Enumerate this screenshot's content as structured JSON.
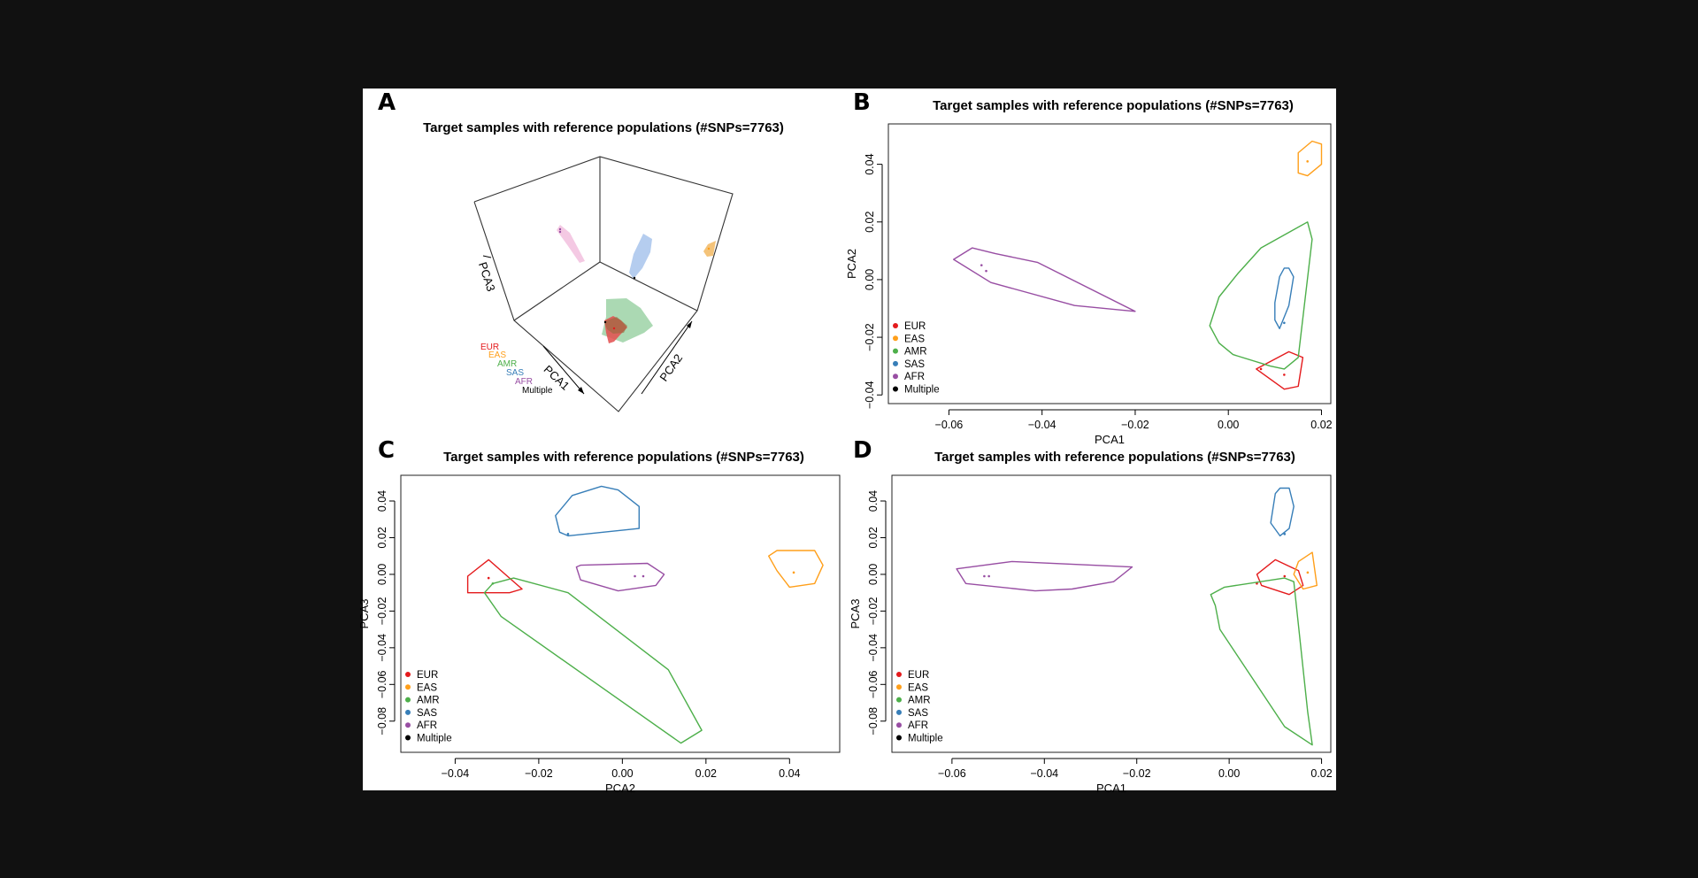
{
  "figure": {
    "panels": [
      "A",
      "B",
      "C",
      "D"
    ]
  },
  "legend": [
    {
      "label": "EUR",
      "color": "#e41a1c"
    },
    {
      "label": "EAS",
      "color": "#ff9f1a"
    },
    {
      "label": "AMR",
      "color": "#4daf4a"
    },
    {
      "label": "SAS",
      "color": "#377eb8"
    },
    {
      "label": "AFR",
      "color": "#984ea3"
    },
    {
      "label": "Multiple",
      "color": "#000000"
    }
  ],
  "chart_data": [
    {
      "panel": "A",
      "type": "scatter",
      "projection": "3d",
      "title": "Target samples with reference populations (#SNPs=7763)",
      "xlabel": "PCA1",
      "ylabel": "PCA2",
      "zlabel": "PCA3",
      "grid": false,
      "legend_position": "bottom-left",
      "hull_style": "filled",
      "series": [
        {
          "name": "EUR",
          "color": "#e41a1c"
        },
        {
          "name": "EAS",
          "color": "#ff9f1a"
        },
        {
          "name": "AMR",
          "color": "#4daf4a"
        },
        {
          "name": "SAS",
          "color": "#377eb8"
        },
        {
          "name": "AFR",
          "color": "#984ea3"
        },
        {
          "name": "Multiple",
          "color": "#000000"
        }
      ]
    },
    {
      "panel": "B",
      "type": "scatter",
      "title": "Target samples with reference populations (#SNPs=7763)",
      "xlabel": "PCA1",
      "ylabel": "PCA2",
      "xlim": [
        -0.073,
        0.022
      ],
      "ylim": [
        -0.043,
        0.054
      ],
      "xticks": [
        -0.06,
        -0.04,
        -0.02,
        0.0,
        0.02
      ],
      "xtick_labels": [
        "−0.06",
        "−0.04",
        "−0.02",
        "0.00",
        "0.02"
      ],
      "yticks": [
        -0.04,
        -0.02,
        0.0,
        0.02,
        0.04
      ],
      "ytick_labels": [
        "−0.04",
        "−0.02",
        "0.00",
        "0.02",
        "0.04"
      ],
      "grid": false,
      "legend_position": "bottom-left",
      "series": [
        {
          "name": "EUR",
          "color": "#e41a1c",
          "hull": [
            [
              0.006,
              -0.031
            ],
            [
              0.013,
              -0.025
            ],
            [
              0.016,
              -0.027
            ],
            [
              0.015,
              -0.037
            ],
            [
              0.012,
              -0.038
            ]
          ],
          "points": [
            [
              0.007,
              -0.031
            ],
            [
              0.012,
              -0.033
            ]
          ]
        },
        {
          "name": "EAS",
          "color": "#ff9f1a",
          "hull": [
            [
              0.015,
              0.044
            ],
            [
              0.018,
              0.048
            ],
            [
              0.02,
              0.047
            ],
            [
              0.02,
              0.04
            ],
            [
              0.017,
              0.036
            ],
            [
              0.015,
              0.037
            ]
          ],
          "points": [
            [
              0.017,
              0.041
            ]
          ]
        },
        {
          "name": "AMR",
          "color": "#4daf4a",
          "hull": [
            [
              0.007,
              0.011
            ],
            [
              0.017,
              0.02
            ],
            [
              0.018,
              0.014
            ],
            [
              0.015,
              -0.027
            ],
            [
              0.012,
              -0.031
            ],
            [
              0.009,
              -0.03
            ],
            [
              0.001,
              -0.026
            ],
            [
              -0.002,
              -0.022
            ],
            [
              -0.004,
              -0.016
            ],
            [
              -0.002,
              -0.006
            ],
            [
              0.002,
              0.002
            ]
          ],
          "points": []
        },
        {
          "name": "SAS",
          "color": "#377eb8",
          "hull": [
            [
              0.011,
              0.001
            ],
            [
              0.012,
              0.004
            ],
            [
              0.013,
              0.004
            ],
            [
              0.014,
              0.001
            ],
            [
              0.013,
              -0.009
            ],
            [
              0.011,
              -0.017
            ],
            [
              0.01,
              -0.014
            ],
            [
              0.01,
              -0.008
            ]
          ],
          "points": [
            [
              0.012,
              -0.015
            ]
          ]
        },
        {
          "name": "AFR",
          "color": "#984ea3",
          "hull": [
            [
              -0.059,
              0.007
            ],
            [
              -0.055,
              0.011
            ],
            [
              -0.05,
              0.009
            ],
            [
              -0.041,
              0.006
            ],
            [
              -0.02,
              -0.011
            ],
            [
              -0.033,
              -0.009
            ],
            [
              -0.051,
              -0.001
            ]
          ],
          "points": [
            [
              -0.053,
              0.005
            ],
            [
              -0.052,
              0.003
            ]
          ]
        }
      ]
    },
    {
      "panel": "C",
      "type": "scatter",
      "title": "Target samples with reference populations (#SNPs=7763)",
      "xlabel": "PCA2",
      "ylabel": "PCA3",
      "xlim": [
        -0.053,
        0.052
      ],
      "ylim": [
        -0.097,
        0.054
      ],
      "xticks": [
        -0.04,
        -0.02,
        0.0,
        0.02,
        0.04
      ],
      "xtick_labels": [
        "−0.04",
        "−0.02",
        "0.00",
        "0.02",
        "0.04"
      ],
      "yticks": [
        -0.08,
        -0.06,
        -0.04,
        -0.02,
        0.0,
        0.02,
        0.04
      ],
      "ytick_labels": [
        "−0.08",
        "−0.06",
        "−0.04",
        "−0.02",
        "0.00",
        "0.02",
        "0.04"
      ],
      "grid": false,
      "legend_position": "bottom-left",
      "series": [
        {
          "name": "EUR",
          "color": "#e41a1c",
          "hull": [
            [
              -0.037,
              -0.001
            ],
            [
              -0.032,
              0.008
            ],
            [
              -0.027,
              -0.002
            ],
            [
              -0.024,
              -0.008
            ],
            [
              -0.027,
              -0.01
            ],
            [
              -0.037,
              -0.01
            ]
          ],
          "points": [
            [
              -0.032,
              -0.002
            ]
          ]
        },
        {
          "name": "EAS",
          "color": "#ff9f1a",
          "hull": [
            [
              0.035,
              0.01
            ],
            [
              0.037,
              0.013
            ],
            [
              0.046,
              0.013
            ],
            [
              0.048,
              0.005
            ],
            [
              0.046,
              -0.005
            ],
            [
              0.04,
              -0.007
            ],
            [
              0.037,
              0.002
            ]
          ],
          "points": [
            [
              0.041,
              0.001
            ]
          ]
        },
        {
          "name": "AMR",
          "color": "#4daf4a",
          "hull": [
            [
              -0.031,
              -0.005
            ],
            [
              -0.026,
              -0.002
            ],
            [
              -0.013,
              -0.01
            ],
            [
              0.011,
              -0.052
            ],
            [
              0.019,
              -0.085
            ],
            [
              0.014,
              -0.092
            ],
            [
              -0.029,
              -0.023
            ],
            [
              -0.033,
              -0.01
            ]
          ],
          "points": [
            [
              -0.031,
              -0.005
            ]
          ]
        },
        {
          "name": "SAS",
          "color": "#377eb8",
          "hull": [
            [
              -0.016,
              0.032
            ],
            [
              -0.012,
              0.043
            ],
            [
              -0.005,
              0.048
            ],
            [
              -0.001,
              0.046
            ],
            [
              0.004,
              0.037
            ],
            [
              0.004,
              0.025
            ],
            [
              -0.013,
              0.021
            ],
            [
              -0.015,
              0.023
            ]
          ],
          "points": [
            [
              -0.013,
              0.022
            ]
          ]
        },
        {
          "name": "AFR",
          "color": "#984ea3",
          "hull": [
            [
              -0.011,
              0.004
            ],
            [
              -0.01,
              0.005
            ],
            [
              0.006,
              0.006
            ],
            [
              0.01,
              0.0
            ],
            [
              0.008,
              -0.006
            ],
            [
              -0.001,
              -0.009
            ],
            [
              -0.01,
              -0.003
            ]
          ],
          "points": [
            [
              0.003,
              -0.001
            ],
            [
              0.005,
              -0.001
            ]
          ]
        }
      ]
    },
    {
      "panel": "D",
      "type": "scatter",
      "title": "Target samples with reference populations (#SNPs=7763)",
      "xlabel": "PCA1",
      "ylabel": "PCA3",
      "xlim": [
        -0.073,
        0.022
      ],
      "ylim": [
        -0.097,
        0.054
      ],
      "xticks": [
        -0.06,
        -0.04,
        -0.02,
        0.0,
        0.02
      ],
      "xtick_labels": [
        "−0.06",
        "−0.04",
        "−0.02",
        "0.00",
        "0.02"
      ],
      "yticks": [
        -0.08,
        -0.06,
        -0.04,
        -0.02,
        0.0,
        0.02,
        0.04
      ],
      "ytick_labels": [
        "−0.08",
        "−0.06",
        "−0.04",
        "−0.02",
        "0.00",
        "0.02",
        "0.04"
      ],
      "grid": false,
      "legend_position": "bottom-left",
      "series": [
        {
          "name": "EUR",
          "color": "#e41a1c",
          "hull": [
            [
              0.006,
              0.0
            ],
            [
              0.01,
              0.008
            ],
            [
              0.015,
              0.002
            ],
            [
              0.016,
              -0.006
            ],
            [
              0.013,
              -0.011
            ],
            [
              0.007,
              -0.006
            ]
          ],
          "points": [
            [
              0.006,
              -0.005
            ],
            [
              0.012,
              -0.001
            ]
          ]
        },
        {
          "name": "EAS",
          "color": "#ff9f1a",
          "hull": [
            [
              0.015,
              0.007
            ],
            [
              0.018,
              0.012
            ],
            [
              0.019,
              -0.006
            ],
            [
              0.016,
              -0.008
            ],
            [
              0.014,
              0.0
            ]
          ],
          "points": [
            [
              0.017,
              0.001
            ]
          ]
        },
        {
          "name": "AMR",
          "color": "#4daf4a",
          "hull": [
            [
              -0.004,
              -0.011
            ],
            [
              -0.001,
              -0.007
            ],
            [
              0.012,
              -0.002
            ],
            [
              0.014,
              -0.004
            ],
            [
              0.017,
              -0.075
            ],
            [
              0.018,
              -0.093
            ],
            [
              0.012,
              -0.083
            ],
            [
              -0.002,
              -0.03
            ],
            [
              -0.003,
              -0.017
            ]
          ],
          "points": []
        },
        {
          "name": "SAS",
          "color": "#377eb8",
          "hull": [
            [
              0.01,
              0.044
            ],
            [
              0.011,
              0.047
            ],
            [
              0.013,
              0.047
            ],
            [
              0.014,
              0.037
            ],
            [
              0.013,
              0.025
            ],
            [
              0.011,
              0.021
            ],
            [
              0.009,
              0.028
            ]
          ],
          "points": [
            [
              0.012,
              0.022
            ]
          ]
        },
        {
          "name": "AFR",
          "color": "#984ea3",
          "hull": [
            [
              -0.059,
              0.003
            ],
            [
              -0.047,
              0.007
            ],
            [
              -0.021,
              0.004
            ],
            [
              -0.025,
              -0.004
            ],
            [
              -0.034,
              -0.008
            ],
            [
              -0.042,
              -0.009
            ],
            [
              -0.057,
              -0.005
            ]
          ],
          "points": [
            [
              -0.053,
              -0.001
            ],
            [
              -0.052,
              -0.001
            ]
          ]
        }
      ]
    }
  ]
}
